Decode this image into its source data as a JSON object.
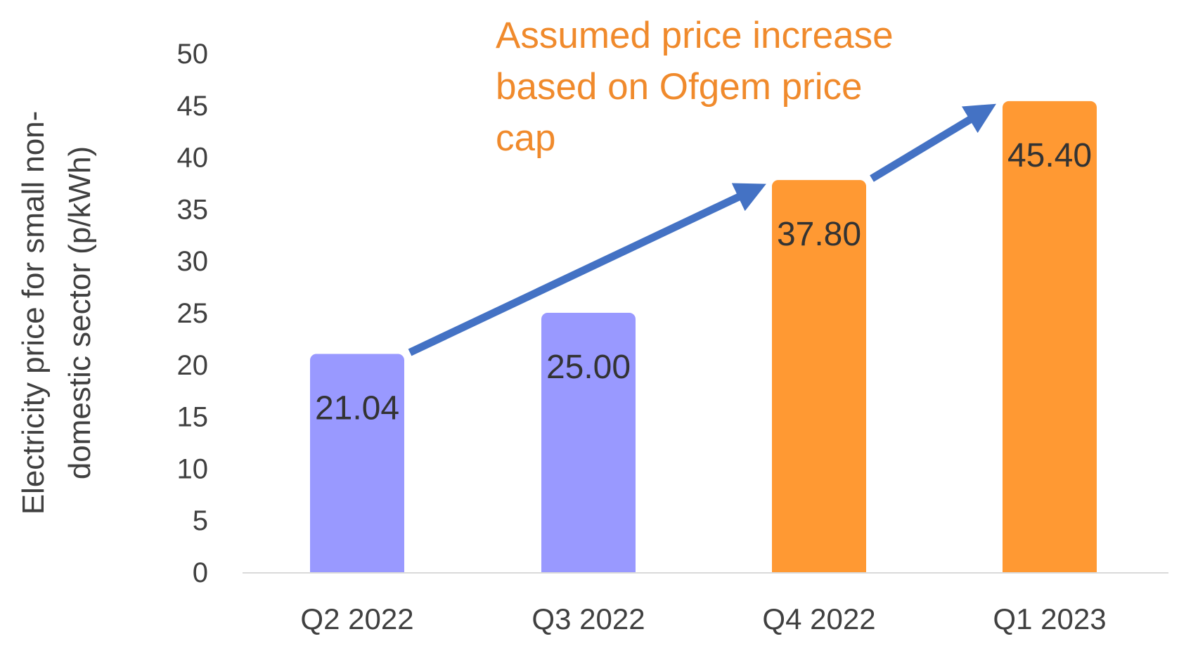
{
  "chart_data": {
    "type": "bar",
    "title": "",
    "xlabel": "",
    "ylabel_lines": [
      "Electricity price for small non-",
      "domestic sector (p/kWh)"
    ],
    "categories": [
      "Q2 2022",
      "Q3 2022",
      "Q4 2022",
      "Q1 2023"
    ],
    "values": [
      21.04,
      25.0,
      37.8,
      45.4
    ],
    "value_labels": [
      "21.04",
      "25.00",
      "37.80",
      "45.40"
    ],
    "bar_colors": [
      "#9999ff",
      "#9999ff",
      "#ff9933",
      "#ff9933"
    ],
    "ylim": [
      0,
      50
    ],
    "yticks": [
      0,
      5,
      10,
      15,
      20,
      25,
      30,
      35,
      40,
      45,
      50
    ],
    "grid": false,
    "annotation": {
      "lines": [
        "Assumed price increase",
        "based on Ofgem price",
        "cap"
      ],
      "color": "#f08a2c"
    },
    "arrows": [
      {
        "from_category": "Q2 2022",
        "to_category": "Q4 2022"
      },
      {
        "from_category": "Q4 2022",
        "to_category": "Q1 2023"
      }
    ],
    "arrow_color": "#4472c4",
    "axis_color": "#d9d9d9",
    "text_color": "#404040"
  }
}
